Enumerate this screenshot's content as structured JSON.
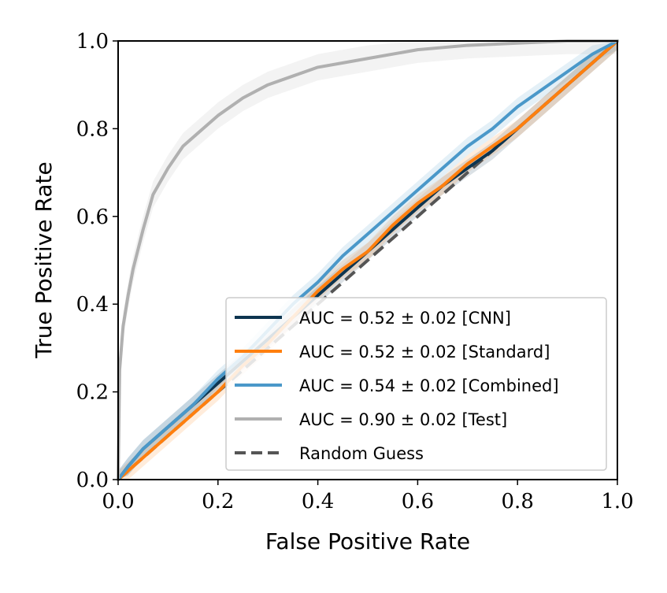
{
  "chart_data": {
    "type": "line",
    "title": "",
    "xlabel": "False Positive Rate",
    "ylabel": "True Positive Rate",
    "xlim": [
      0.0,
      1.0
    ],
    "ylim": [
      0.0,
      1.0
    ],
    "xticks": [
      "0.0",
      "0.2",
      "0.4",
      "0.6",
      "0.8",
      "1.0"
    ],
    "yticks": [
      "0.0",
      "0.2",
      "0.4",
      "0.6",
      "0.8",
      "1.0"
    ],
    "grid": false,
    "legend_position": "bottom-right",
    "series": [
      {
        "name": "CNN",
        "label": "AUC = 0.52 ± 0.02 [CNN]",
        "color": "#0d3550",
        "band": 0.02,
        "x": [
          0,
          0.02,
          0.05,
          0.1,
          0.15,
          0.2,
          0.25,
          0.3,
          0.35,
          0.4,
          0.45,
          0.5,
          0.55,
          0.6,
          0.65,
          0.7,
          0.75,
          0.8,
          0.85,
          0.9,
          0.95,
          1.0
        ],
        "y": [
          0,
          0.03,
          0.07,
          0.12,
          0.17,
          0.22,
          0.27,
          0.32,
          0.37,
          0.42,
          0.47,
          0.52,
          0.57,
          0.62,
          0.67,
          0.71,
          0.75,
          0.8,
          0.85,
          0.9,
          0.95,
          1.0
        ]
      },
      {
        "name": "Standard",
        "label": "AUC = 0.52 ± 0.02 [Standard]",
        "color": "#ff7f0e",
        "band": 0.02,
        "x": [
          0,
          0.02,
          0.05,
          0.1,
          0.15,
          0.2,
          0.25,
          0.3,
          0.35,
          0.4,
          0.45,
          0.5,
          0.55,
          0.6,
          0.65,
          0.7,
          0.75,
          0.8,
          0.85,
          0.9,
          0.95,
          1.0
        ],
        "y": [
          0,
          0.02,
          0.05,
          0.1,
          0.15,
          0.2,
          0.26,
          0.31,
          0.37,
          0.43,
          0.48,
          0.52,
          0.58,
          0.63,
          0.67,
          0.72,
          0.76,
          0.8,
          0.85,
          0.9,
          0.95,
          1.0
        ]
      },
      {
        "name": "Combined",
        "label": "AUC = 0.54 ± 0.02 [Combined]",
        "color": "#4a98c9",
        "band": 0.02,
        "x": [
          0,
          0.02,
          0.05,
          0.1,
          0.15,
          0.2,
          0.25,
          0.3,
          0.35,
          0.4,
          0.45,
          0.5,
          0.55,
          0.6,
          0.65,
          0.7,
          0.75,
          0.8,
          0.85,
          0.9,
          0.95,
          1.0
        ],
        "y": [
          0,
          0.03,
          0.07,
          0.12,
          0.17,
          0.23,
          0.28,
          0.34,
          0.4,
          0.45,
          0.51,
          0.56,
          0.61,
          0.66,
          0.71,
          0.76,
          0.8,
          0.85,
          0.89,
          0.93,
          0.97,
          1.0
        ]
      },
      {
        "name": "Test",
        "label": "AUC = 0.90 ± 0.02 [Test]",
        "color": "#b0b0b0",
        "band": 0.03,
        "x": [
          0,
          0.003,
          0.01,
          0.02,
          0.03,
          0.05,
          0.07,
          0.1,
          0.13,
          0.17,
          0.2,
          0.25,
          0.3,
          0.35,
          0.4,
          0.45,
          0.5,
          0.6,
          0.7,
          0.8,
          0.9,
          1.0
        ],
        "y": [
          0,
          0.25,
          0.35,
          0.42,
          0.48,
          0.57,
          0.65,
          0.71,
          0.76,
          0.8,
          0.83,
          0.87,
          0.9,
          0.92,
          0.94,
          0.95,
          0.96,
          0.98,
          0.99,
          0.995,
          1.0,
          1.0
        ]
      }
    ],
    "reference_line": {
      "name": "Random Guess",
      "label": "Random Guess",
      "color": "#555555",
      "x": [
        0,
        1
      ],
      "y": [
        0,
        1
      ]
    }
  }
}
